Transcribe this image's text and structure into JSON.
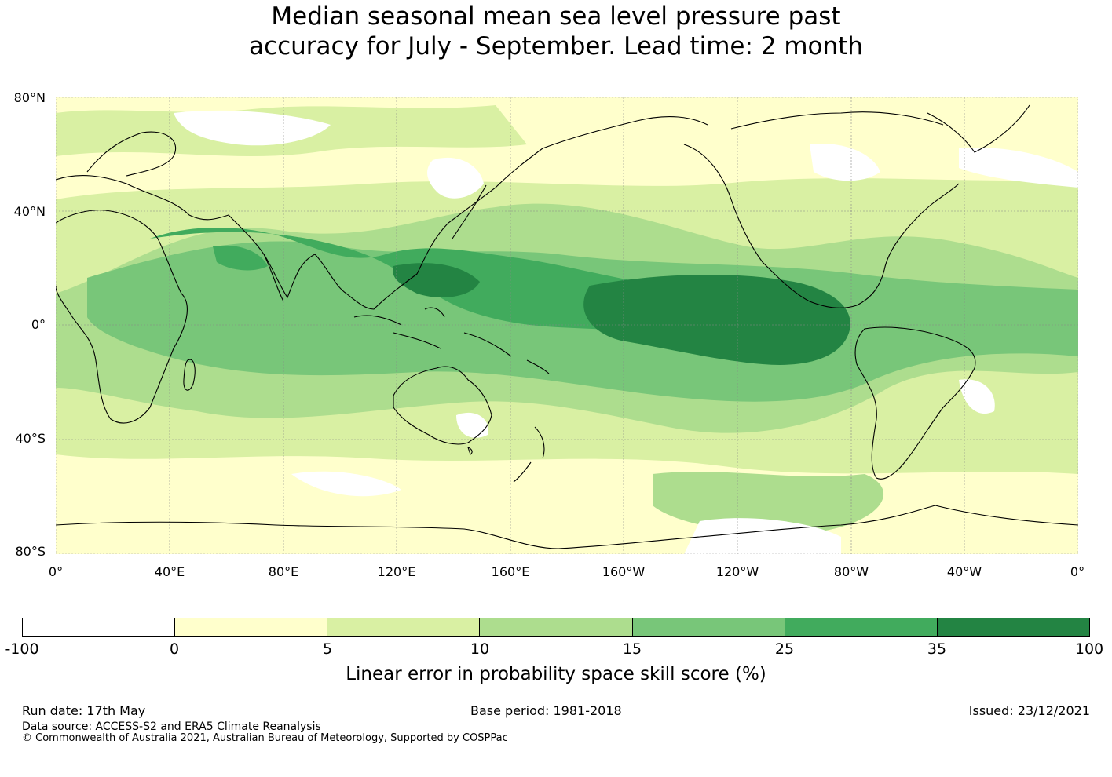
{
  "title": {
    "line1": "Median seasonal mean sea level pressure past",
    "line2": "accuracy for July - September. Lead time: 2 month"
  },
  "map": {
    "lat_labels": [
      "80°N",
      "40°N",
      "0°",
      "40°S",
      "80°S"
    ],
    "lon_labels": [
      "0°",
      "40°E",
      "80°E",
      "120°E",
      "160°E",
      "160°W",
      "120°W",
      "80°W",
      "40°W",
      "0°"
    ]
  },
  "colorbar": {
    "colors": [
      "#ffffff",
      "#ffffcc",
      "#d9f0a3",
      "#addd8e",
      "#78c679",
      "#41ab5d",
      "#238443"
    ],
    "ticks": [
      "-100",
      "0",
      "5",
      "10",
      "15",
      "25",
      "35",
      "100"
    ],
    "label": "Linear error in probability space skill score (%)"
  },
  "footer": {
    "run_date": "Run date: 17th May",
    "base_period": "Base period: 1981-2018",
    "issued": "Issued: 23/12/2021",
    "data_source": "Data source: ACCESS-S2 and ERA5 Climate Reanalysis",
    "copyright": "© Commonwealth of Australia 2021, Australian Bureau of Meteorology, Supported by COSPPac"
  }
}
